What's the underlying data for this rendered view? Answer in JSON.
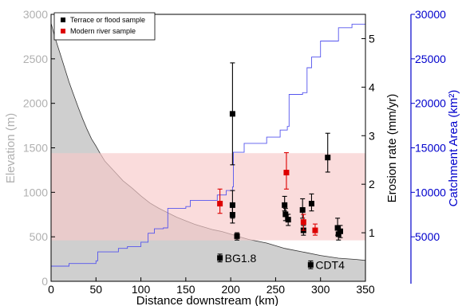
{
  "chart_data": {
    "type": "scatter",
    "xlabel": "Distance downstream (km)",
    "ylabel_left": "Elevation (m)",
    "ylabel_right": "Erosion rate (mm/yr)",
    "ylabel_far_right": "Catchment Area (km²)",
    "xlim": [
      0,
      350
    ],
    "ylim_left": [
      0,
      3000
    ],
    "ylim_right": [
      0,
      5.5
    ],
    "ylim_far_right": [
      0,
      30000
    ],
    "xticks": [
      "0",
      "50",
      "100",
      "150",
      "200",
      "250",
      "300",
      "350"
    ],
    "yticks_left": [
      "0",
      "500",
      "1000",
      "1500",
      "2000",
      "2500",
      "3000"
    ],
    "yticks_right": [
      "1",
      "2",
      "3",
      "4",
      "5"
    ],
    "yticks_far_right": [
      "5000",
      "10000",
      "15000",
      "20000",
      "25000",
      "30000"
    ],
    "legend": {
      "placement": "top-left",
      "entries": [
        {
          "label": "Terrace or flood sample",
          "color": "#000000"
        },
        {
          "label": "Modern river sample",
          "color": "#dd0000"
        }
      ]
    },
    "band": {
      "y_from": 460,
      "y_to": 1440,
      "color": "#f7c9c9"
    },
    "elevation_profile": {
      "color": "#b0b0b0",
      "points": [
        [
          0,
          2900
        ],
        [
          5,
          2720
        ],
        [
          10,
          2560
        ],
        [
          15,
          2400
        ],
        [
          20,
          2240
        ],
        [
          25,
          2100
        ],
        [
          30,
          1960
        ],
        [
          35,
          1830
        ],
        [
          40,
          1710
        ],
        [
          45,
          1600
        ],
        [
          50,
          1520
        ],
        [
          55,
          1430
        ],
        [
          60,
          1350
        ],
        [
          70,
          1240
        ],
        [
          80,
          1130
        ],
        [
          90,
          1050
        ],
        [
          100,
          960
        ],
        [
          110,
          880
        ],
        [
          120,
          820
        ],
        [
          130,
          770
        ],
        [
          140,
          720
        ],
        [
          150,
          680
        ],
        [
          160,
          640
        ],
        [
          170,
          610
        ],
        [
          180,
          580
        ],
        [
          190,
          560
        ],
        [
          200,
          530
        ],
        [
          210,
          500
        ],
        [
          220,
          470
        ],
        [
          240,
          430
        ],
        [
          260,
          370
        ],
        [
          280,
          330
        ],
        [
          300,
          290
        ],
        [
          320,
          260
        ],
        [
          340,
          245
        ],
        [
          350,
          235
        ]
      ]
    },
    "catchment_area": {
      "color": "#5555ee",
      "points": [
        [
          0,
          1700
        ],
        [
          20,
          2000
        ],
        [
          50,
          2300
        ],
        [
          52,
          3300
        ],
        [
          75,
          3700
        ],
        [
          85,
          3900
        ],
        [
          100,
          4400
        ],
        [
          108,
          5400
        ],
        [
          115,
          5900
        ],
        [
          125,
          6000
        ],
        [
          130,
          8200
        ],
        [
          150,
          8400
        ],
        [
          155,
          9100
        ],
        [
          185,
          9700
        ],
        [
          195,
          10200
        ],
        [
          202,
          10600
        ],
        [
          203,
          14500
        ],
        [
          215,
          15500
        ],
        [
          240,
          16200
        ],
        [
          255,
          17000
        ],
        [
          263,
          17400
        ],
        [
          265,
          21000
        ],
        [
          280,
          21200
        ],
        [
          285,
          24000
        ],
        [
          290,
          25200
        ],
        [
          300,
          27000
        ],
        [
          320,
          28500
        ],
        [
          335,
          28900
        ],
        [
          350,
          29200
        ]
      ]
    },
    "series": [
      {
        "name": "Terrace or flood sample",
        "color": "#000000",
        "points": [
          {
            "x": 202,
            "y": 3.45,
            "lo": 2.4,
            "hi": 4.5
          },
          {
            "x": 202,
            "y": 1.57,
            "lo": 1.3,
            "hi": 1.87
          },
          {
            "x": 202,
            "y": 1.37,
            "lo": 1.2,
            "hi": 1.55
          },
          {
            "x": 207,
            "y": 0.93,
            "lo": 0.85,
            "hi": 1.0
          },
          {
            "x": 260,
            "y": 1.57,
            "lo": 1.45,
            "hi": 1.75
          },
          {
            "x": 261,
            "y": 1.38,
            "lo": 1.25,
            "hi": 1.5
          },
          {
            "x": 264,
            "y": 1.27,
            "lo": 1.15,
            "hi": 1.38
          },
          {
            "x": 280,
            "y": 1.47,
            "lo": 1.3,
            "hi": 1.7
          },
          {
            "x": 281,
            "y": 1.05,
            "lo": 0.95,
            "hi": 1.15
          },
          {
            "x": 290,
            "y": 1.6,
            "lo": 1.45,
            "hi": 1.8
          },
          {
            "x": 308,
            "y": 2.55,
            "lo": 2.25,
            "hi": 3.05
          },
          {
            "x": 319,
            "y": 1.1,
            "lo": 0.95,
            "hi": 1.3
          },
          {
            "x": 320,
            "y": 0.97,
            "lo": 0.85,
            "hi": 1.1
          },
          {
            "x": 322,
            "y": 1.03,
            "lo": 0.9,
            "hi": 1.15
          }
        ]
      },
      {
        "name": "Modern river sample",
        "color": "#dd0000",
        "points": [
          {
            "x": 188,
            "y": 1.6,
            "lo": 1.4,
            "hi": 1.9
          },
          {
            "x": 262,
            "y": 2.24,
            "lo": 1.9,
            "hi": 2.65
          },
          {
            "x": 281,
            "y": 1.22,
            "lo": 1.05,
            "hi": 1.38
          },
          {
            "x": 294,
            "y": 1.05,
            "lo": 0.95,
            "hi": 1.18
          }
        ]
      }
    ],
    "annotations": [
      {
        "label": "BG1.8",
        "x": 188,
        "y": 0.48,
        "lo": 0.4,
        "hi": 0.56
      },
      {
        "label": "CDT4",
        "x": 289,
        "y": 0.34,
        "lo": 0.26,
        "hi": 0.42
      }
    ]
  }
}
